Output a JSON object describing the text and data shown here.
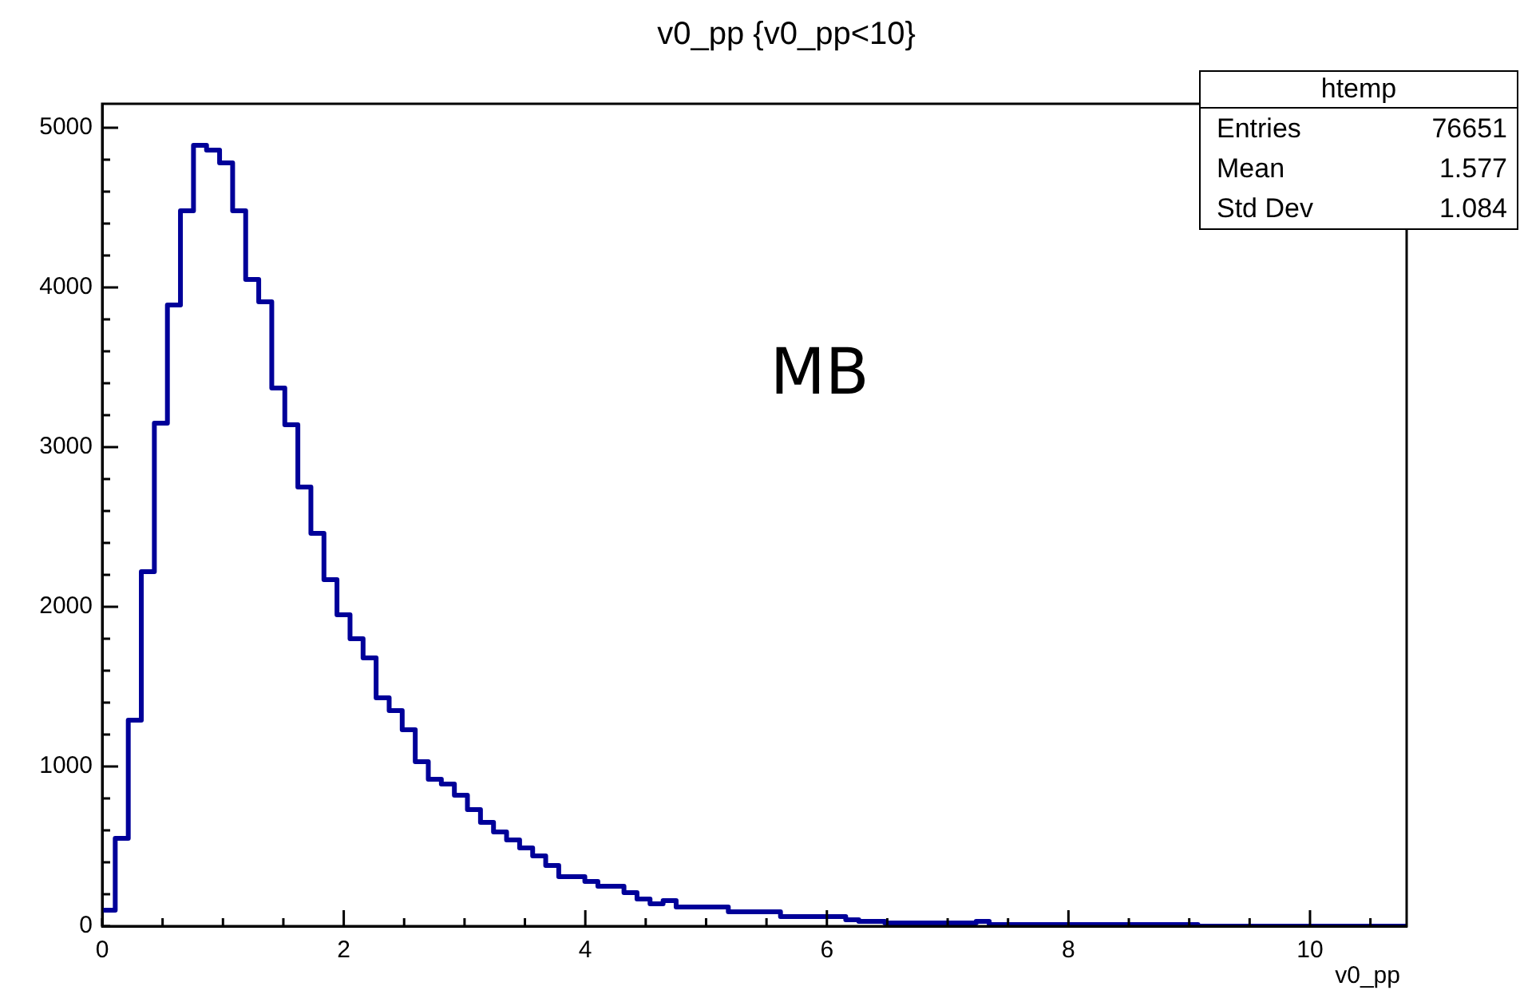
{
  "chart_data": {
    "type": "histogram",
    "title": "v0_pp {v0_pp<10}",
    "xlabel": "v0_pp",
    "annotations": [
      "MB",
      "htemp",
      "Entries",
      "76651",
      "Mean",
      "1.577",
      "Std Dev",
      "1.084"
    ],
    "color": "#000099",
    "legend": false,
    "grid": false,
    "xlim": [
      0,
      10.8
    ],
    "ylim": [
      0,
      5150
    ],
    "xticks": [
      0,
      {
        "value": 0.5,
        "label": null
      },
      {
        "value": 1,
        "label": null
      },
      {
        "value": 1.5,
        "label": null
      },
      2,
      {
        "value": 2.5,
        "label": null
      },
      {
        "value": 3,
        "label": null
      },
      {
        "value": 3.5,
        "label": null
      },
      4,
      {
        "value": 4.5,
        "label": null
      },
      {
        "value": 5,
        "label": null
      },
      {
        "value": 5.5,
        "label": null
      },
      6,
      {
        "value": 6.5,
        "label": null
      },
      {
        "value": 7,
        "label": null
      },
      {
        "value": 7.5,
        "label": null
      },
      8,
      {
        "value": 8.5,
        "label": null
      },
      {
        "value": 9,
        "label": null
      },
      {
        "value": 9.5,
        "label": null
      },
      10,
      {
        "value": 10.5,
        "label": null
      }
    ],
    "yticks": [
      0,
      {
        "value": 200,
        "label": null
      },
      {
        "value": 400,
        "label": null
      },
      {
        "value": 600,
        "label": null
      },
      {
        "value": 800,
        "label": null
      },
      1000,
      {
        "value": 1200,
        "label": null
      },
      {
        "value": 1400,
        "label": null
      },
      {
        "value": 1600,
        "label": null
      },
      {
        "value": 1800,
        "label": null
      },
      2000,
      {
        "value": 2200,
        "label": null
      },
      {
        "value": 2400,
        "label": null
      },
      {
        "value": 2600,
        "label": null
      },
      {
        "value": 2800,
        "label": null
      },
      3000,
      {
        "value": 3200,
        "label": null
      },
      {
        "value": 3400,
        "label": null
      },
      {
        "value": 3600,
        "label": null
      },
      {
        "value": 3800,
        "label": null
      },
      4000,
      {
        "value": 4200,
        "label": null
      },
      {
        "value": 4400,
        "label": null
      },
      {
        "value": 4600,
        "label": null
      },
      {
        "value": 4800,
        "label": null
      },
      5000
    ],
    "bins": [
      0,
      0.108,
      0.216,
      0.324,
      0.432,
      0.54,
      0.648,
      0.756,
      0.864,
      0.972,
      1.08,
      1.188,
      1.296,
      1.404,
      1.512,
      1.62,
      1.728,
      1.836,
      1.944,
      2.052,
      2.16,
      2.268,
      2.376,
      2.484,
      2.592,
      2.7,
      2.808,
      2.916,
      3.024,
      3.132,
      3.24,
      3.348,
      3.456,
      3.564,
      3.672,
      3.78,
      3.888,
      3.996,
      4.104,
      4.212,
      4.32,
      4.428,
      4.536,
      4.644,
      4.752,
      4.86,
      4.968,
      5.076,
      5.184,
      5.292,
      5.4,
      5.508,
      5.616,
      5.724,
      5.832,
      5.94,
      6.048,
      6.156,
      6.264,
      6.372,
      6.48,
      6.588,
      6.696,
      6.804,
      6.912,
      7.02,
      7.128,
      7.236,
      7.344,
      7.452,
      7.56,
      7.668,
      7.776,
      7.884,
      7.992,
      8.1,
      8.208,
      8.316,
      8.424,
      8.532,
      8.64,
      8.748,
      8.856,
      8.964,
      9.072,
      9.18,
      9.288,
      9.396,
      9.504,
      9.612,
      9.72,
      9.828,
      9.936,
      10.044,
      10.152,
      10.26,
      10.368,
      10.476,
      10.584,
      10.692,
      10.8
    ],
    "values": [
      100,
      550,
      1290,
      2220,
      3150,
      3890,
      4480,
      4890,
      4860,
      4780,
      4480,
      4050,
      3910,
      3370,
      3140,
      2750,
      2460,
      2170,
      1950,
      1800,
      1680,
      1430,
      1350,
      1230,
      1030,
      920,
      890,
      820,
      730,
      650,
      590,
      540,
      490,
      440,
      380,
      310,
      310,
      280,
      250,
      250,
      210,
      170,
      140,
      160,
      120,
      120,
      120,
      120,
      90,
      90,
      90,
      90,
      60,
      60,
      60,
      60,
      60,
      40,
      30,
      30,
      20,
      20,
      20,
      20,
      20,
      20,
      20,
      30,
      10,
      10,
      10,
      10,
      10,
      10,
      10,
      10,
      10,
      10,
      10,
      10,
      10,
      10,
      10,
      10,
      0,
      0,
      0,
      0,
      0,
      0,
      0,
      0,
      0,
      0,
      0,
      0,
      0,
      0,
      0,
      0
    ]
  }
}
